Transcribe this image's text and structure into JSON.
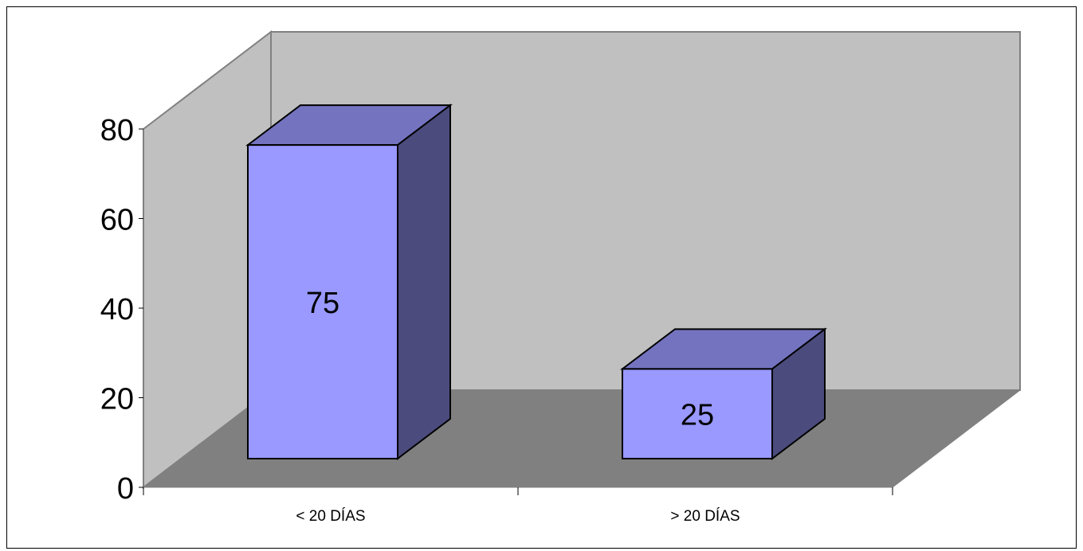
{
  "chart_data": {
    "type": "bar",
    "style": "3d-column",
    "categories": [
      "< 20 DÍAS",
      "> 20 DÍAS"
    ],
    "values": [
      75,
      25
    ],
    "data_labels": [
      "75",
      "25"
    ],
    "title": "",
    "xlabel": "",
    "ylabel": "",
    "ylim": [
      0,
      80
    ],
    "y_ticks": [
      0,
      20,
      40,
      60,
      80
    ],
    "y_tick_labels": [
      "0",
      "20",
      "40",
      "60",
      "80"
    ],
    "grid": false,
    "legend": "none",
    "colors": {
      "bar_front": "#9999ff",
      "bar_top": "#7373c0",
      "bar_side": "#4b4b7d",
      "back_wall": "#c0c0c0",
      "side_wall": "#c0c0c0",
      "floor": "#808080",
      "outline": "#000000",
      "wall_edge": "#808080"
    }
  }
}
